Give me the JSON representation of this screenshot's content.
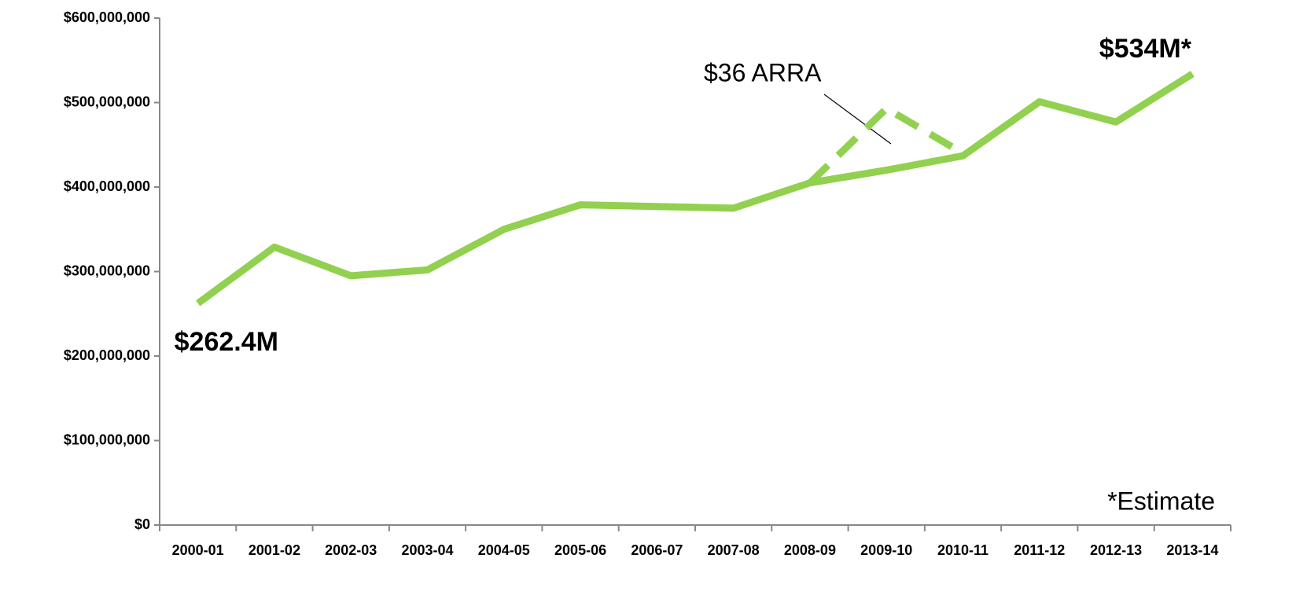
{
  "chart_data": {
    "type": "line",
    "categories": [
      "2000-01",
      "2001-02",
      "2002-03",
      "2003-04",
      "2004-05",
      "2005-06",
      "2006-07",
      "2007-08",
      "2008-09",
      "2009-10",
      "2010-11",
      "2011-12",
      "2012-13",
      "2013-14"
    ],
    "series": [
      {
        "color": "#92d050",
        "values": [
          262400000,
          329000000,
          295000000,
          302000000,
          350000000,
          379000000,
          377000000,
          375000000,
          405000000,
          420000000,
          437000000,
          501000000,
          477000000,
          534000000
        ],
        "value_labels": [
          "$262.4M",
          null,
          null,
          null,
          null,
          null,
          null,
          null,
          null,
          null,
          null,
          null,
          null,
          "$534M*"
        ]
      },
      {
        "color": "#92d050",
        "dash": true,
        "values": [
          null,
          null,
          null,
          null,
          null,
          null,
          null,
          null,
          405000000,
          493000000,
          440000000,
          null,
          null,
          null
        ]
      }
    ],
    "ylim": [
      0,
      600000000
    ],
    "yticks": [
      {
        "value": 0,
        "label": "$0"
      },
      {
        "value": 100000000,
        "label": "$100,000,000"
      },
      {
        "value": 200000000,
        "label": "$200,000,000"
      },
      {
        "value": 300000000,
        "label": "$300,000,000"
      },
      {
        "value": 400000000,
        "label": "$400,000,000"
      },
      {
        "value": 500000000,
        "label": "$500,000,000"
      },
      {
        "value": 600000000,
        "label": "$600,000,000"
      }
    ],
    "annotations": [
      "$36 ARRA",
      "*Estimate"
    ],
    "grid": false
  }
}
